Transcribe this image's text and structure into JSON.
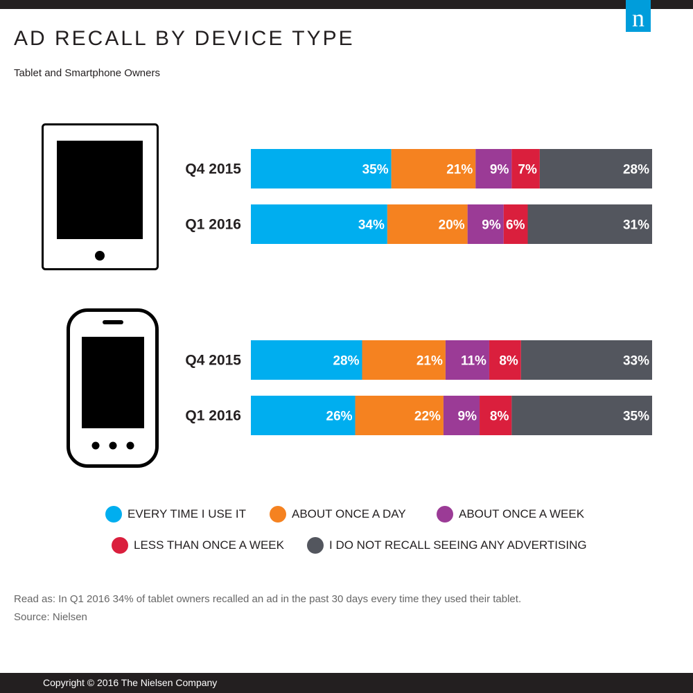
{
  "header": {
    "logo_text": "n",
    "title": "AD RECALL BY DEVICE TYPE",
    "subtitle": "Tablet and Smartphone Owners"
  },
  "colors": {
    "every_time": "#00aeef",
    "once_a_day": "#f58220",
    "once_a_week": "#9b3b96",
    "less_than_week": "#da1f3d",
    "do_not_recall": "#53565e",
    "icon": "#000000"
  },
  "chart_data": {
    "type": "bar",
    "orientation": "horizontal",
    "stacked": true,
    "title": "AD RECALL BY DEVICE TYPE",
    "subtitle": "Tablet and Smartphone Owners",
    "groups": [
      {
        "device": "Tablet",
        "icon": "tablet-icon",
        "rows": [
          {
            "category": "Q4 2015",
            "values": [
              35,
              21,
              9,
              7,
              28
            ]
          },
          {
            "category": "Q1 2016",
            "values": [
              34,
              20,
              9,
              6,
              31
            ]
          }
        ]
      },
      {
        "device": "Smartphone",
        "icon": "smartphone-icon",
        "rows": [
          {
            "category": "Q4 2015",
            "values": [
              28,
              21,
              11,
              8,
              33
            ]
          },
          {
            "category": "Q1 2016",
            "values": [
              26,
              22,
              9,
              8,
              35
            ]
          }
        ]
      }
    ],
    "series": [
      {
        "name": "EVERY TIME I USE IT",
        "color": "#00aeef"
      },
      {
        "name": "ABOUT ONCE A DAY",
        "color": "#f58220"
      },
      {
        "name": "ABOUT ONCE A WEEK",
        "color": "#9b3b96"
      },
      {
        "name": "LESS THAN ONCE A WEEK",
        "color": "#da1f3d"
      },
      {
        "name": "I DO NOT RECALL SEEING ANY ADVERTISING",
        "color": "#53565e"
      }
    ],
    "value_suffix": "%",
    "xlim": [
      0,
      100
    ],
    "legend_position": "bottom"
  },
  "notes": {
    "read_as": "Read as: In Q1 2016 34% of tablet owners recalled an ad in the past 30 days every time they used their tablet.",
    "source": "Source: Nielsen"
  },
  "footer": {
    "copyright": "Copyright © 2016 The Nielsen Company"
  }
}
